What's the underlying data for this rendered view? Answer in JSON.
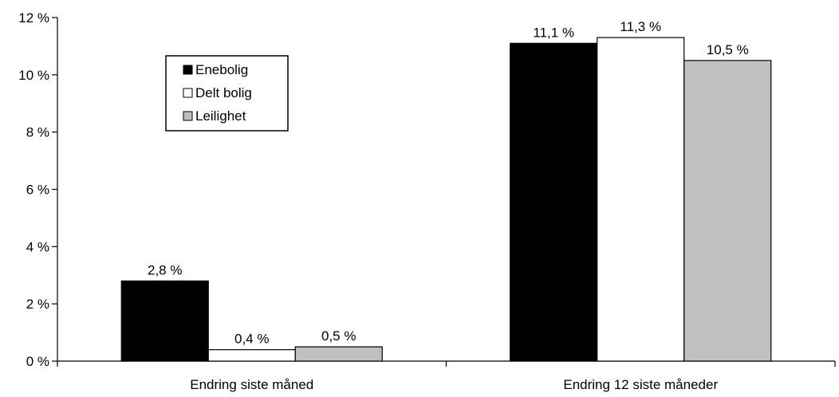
{
  "chart_data": {
    "type": "bar",
    "categories": [
      "Endring siste måned",
      "Endring 12 siste måneder"
    ],
    "series": [
      {
        "name": "Enebolig",
        "values": [
          2.8,
          11.1
        ],
        "labels": [
          "2,8 %",
          "11,1 %"
        ],
        "color": "#000000"
      },
      {
        "name": "Delt bolig",
        "values": [
          0.4,
          11.3
        ],
        "labels": [
          "0,4 %",
          "11,3 %"
        ],
        "color": "#ffffff"
      },
      {
        "name": "Leilighet",
        "values": [
          0.5,
          10.5
        ],
        "labels": [
          "0,5 %",
          "10,5 %"
        ],
        "color": "#c0c0c0"
      }
    ],
    "ylim": [
      0,
      12
    ],
    "yticks": [
      0,
      2,
      4,
      6,
      8,
      10,
      12
    ],
    "ytick_labels": [
      "0 %",
      "2 %",
      "4 %",
      "6 %",
      "8 %",
      "10 %",
      "12 %"
    ],
    "grid": false,
    "legend_position": "top-left"
  }
}
